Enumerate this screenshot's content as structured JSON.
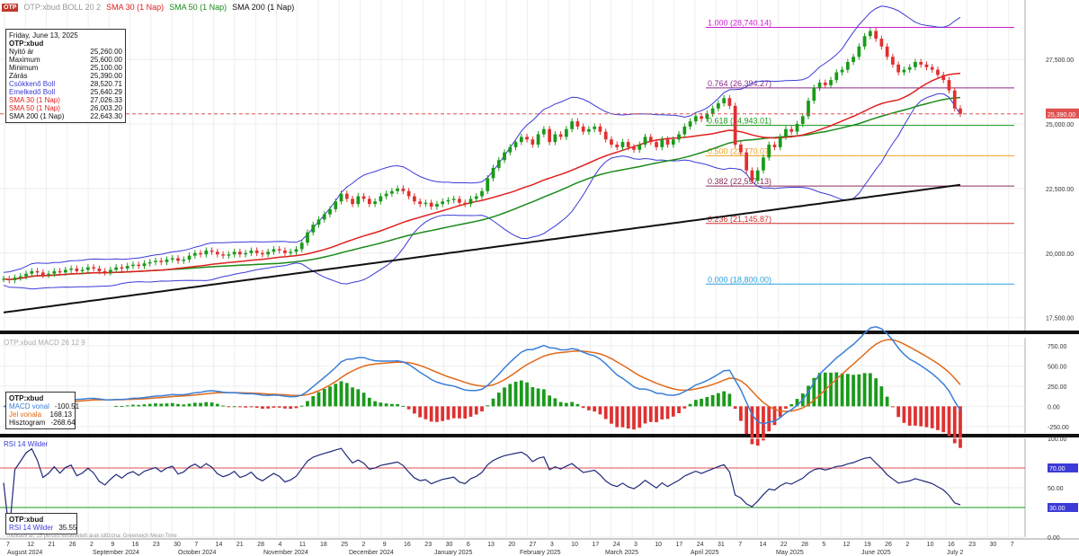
{
  "header": {
    "logo": "OTP",
    "symbol_legend": "OTP:xbud BOLL 20 2",
    "indicators": [
      {
        "label": "SMA 30 (1 Nap)",
        "color": "#e02020"
      },
      {
        "label": "SMA 50 (1 Nap)",
        "color": "#1a8a1a"
      },
      {
        "label": "SMA 200 (1 Nap)",
        "color": "#111111"
      }
    ]
  },
  "info_box": {
    "date": "Friday, June 13, 2025",
    "symbol": "OTP:xbud",
    "rows": [
      {
        "label": "Nyitó ár",
        "value": "25,260.00",
        "color": "#111111"
      },
      {
        "label": "Maximum",
        "value": "25,600.00",
        "color": "#111111"
      },
      {
        "label": "Minimum",
        "value": "25,100.00",
        "color": "#111111"
      },
      {
        "label": "Zárás",
        "value": "25,390.00",
        "color": "#111111"
      },
      {
        "label": "Csökkenő Boll",
        "value": "28,520.71",
        "color": "#3b3bd8"
      },
      {
        "label": "Emelkedő Boll",
        "value": "25,640.29",
        "color": "#3b3bd8"
      },
      {
        "label": "SMA 30 (1 Nap)",
        "value": "27,026.33",
        "color": "#e02020"
      },
      {
        "label": "SMA 50 (1 Nap)",
        "value": "26,003.20",
        "color": "#e02020"
      },
      {
        "label": "SMA 200 (1 Nap)",
        "value": "22,643.30",
        "color": "#111111"
      }
    ]
  },
  "macd_box": {
    "symbol": "OTP:xbud",
    "rows": [
      {
        "label": "MACD vonal",
        "value": "-100.51",
        "color": "#3b7fd8"
      },
      {
        "label": "Jel vonala",
        "value": "168.13",
        "color": "#e06a1a"
      },
      {
        "label": "Hisztogram",
        "value": "-268.64",
        "color": "#111111"
      }
    ]
  },
  "rsi_box": {
    "symbol": "OTP:xbud",
    "label": "RSI 14 Wilder",
    "value": "35.55"
  },
  "macd_legend": "OTP:xbud MACD 26 12 9",
  "rsi_legend": "RSI 14 Wilder",
  "footer_note": "Indikatív ár, 15 perces késleltetett árak Időzóna: Greenwich Mean Time",
  "colors": {
    "up": "#1a9a1a",
    "down": "#e03030",
    "boll": "#3b3bd8",
    "sma30": "#e02020",
    "sma50": "#1a8a1a",
    "sma200": "#111111",
    "macd": "#3b7fd8",
    "signal": "#e06a1a",
    "rsi": "#1f2a7a",
    "price_line": "#e05050"
  },
  "chart_data": [
    {
      "type": "candlestick",
      "panel": "price",
      "y_ticks": [
        "27,500.00",
        "25,000.00",
        "22,500.00",
        "20,000.00",
        "17,500.00"
      ],
      "y_tick_values": [
        27500,
        25000,
        22500,
        20000,
        17500
      ],
      "ylim": [
        17000,
        29800
      ],
      "last_price_label": "25,390.00",
      "last_price": 25390,
      "fibonacci": [
        {
          "label": "1.000 (28,740.14)",
          "value": 28740.14,
          "color": "#d020d0"
        },
        {
          "label": "0.764 (26,394.27)",
          "value": 26394.27,
          "color": "#8a2a8a"
        },
        {
          "label": "0.618 (24,943.01)",
          "value": 24943.01,
          "color": "#1a9a1a"
        },
        {
          "label": "0.500 (23,770.07)",
          "value": 23770.07,
          "color": "#f0a020"
        },
        {
          "label": "0.382 (22,597.13)",
          "value": 22597.13,
          "color": "#8a2a5a"
        },
        {
          "label": "0.236 (21,145.87)",
          "value": 21145.87,
          "color": "#d03030"
        },
        {
          "label": "0.000 (18,800.00)",
          "value": 18800.0,
          "color": "#2aa0e0"
        }
      ],
      "closes_series": "19000,18950,19050,19100,19200,19300,19250,19150,19200,19300,19250,19350,19400,19300,19350,19450,19400,19300,19250,19350,19450,19400,19500,19550,19500,19600,19650,19700,19650,19750,19800,19700,19750,19900,20000,19950,20100,20050,19950,19900,19950,20050,19950,20000,20100,20000,19950,20050,20150,20100,20000,20050,20150,20400,20800,21100,21300,21500,21700,22000,22300,22100,21900,22200,22100,21900,22000,22200,22300,22400,22500,22400,22200,22000,21900,21950,21800,21900,22000,22050,22100,21950,21900,22100,22200,22400,22900,23300,23600,23900,24100,24300,24500,24400,24200,24600,24800,24300,24600,24500,24800,25100,24900,24700,24800,24900,24700,24400,24200,24100,24300,24100,24000,24200,24500,24300,24100,24400,24200,24400,24600,24900,25100,25300,25200,25400,25600,25800,26000,25700,24200,23900,23200,22800,23200,23700,24200,24100,24500,24800,24700,25000,25300,25900,26400,26600,26500,26700,27000,27100,27400,27600,28000,28400,28600,28300,28000,27600,27300,27000,27100,27200,27400,27300,27200,27100,26900,26700,26300,25600,25390"
    },
    {
      "type": "macd",
      "panel": "macd",
      "y_ticks": [
        "750.00",
        "500.00",
        "250.00",
        "0.00",
        "-250.00"
      ],
      "y_tick_values": [
        750,
        500,
        250,
        0,
        -250
      ],
      "ylim": [
        -330,
        850
      ],
      "last_values": {
        "macd": -100.51,
        "signal": 168.13,
        "histogram": -268.64
      }
    },
    {
      "type": "line",
      "panel": "rsi",
      "y_ticks": [
        "100.00",
        "70.00",
        "50.00",
        "30.00",
        "0.00"
      ],
      "y_tick_values": [
        100,
        70,
        50,
        30,
        0
      ],
      "ylim": [
        0,
        100
      ],
      "levels": [
        70,
        30
      ],
      "last_value": 35.55
    }
  ],
  "x_axis": {
    "ticks": [
      "7",
      "12",
      "21",
      "26",
      "2",
      "9",
      "16",
      "23",
      "30",
      "7",
      "14",
      "21",
      "28",
      "4",
      "11",
      "18",
      "25",
      "2",
      "9",
      "16",
      "23",
      "30",
      "6",
      "13",
      "20",
      "27",
      "3",
      "10",
      "17",
      "24",
      "3",
      "10",
      "17",
      "24",
      "31",
      "7",
      "14",
      "22",
      "28",
      "5",
      "12",
      "19",
      "26",
      "2",
      "10",
      "16",
      "23",
      "30",
      "7"
    ],
    "months": [
      "August 2024",
      "September 2024",
      "October 2024",
      "November 2024",
      "December 2024",
      "January 2025",
      "February 2025",
      "March 2025",
      "April 2025",
      "May 2025",
      "June 2025",
      "July 2"
    ]
  }
}
